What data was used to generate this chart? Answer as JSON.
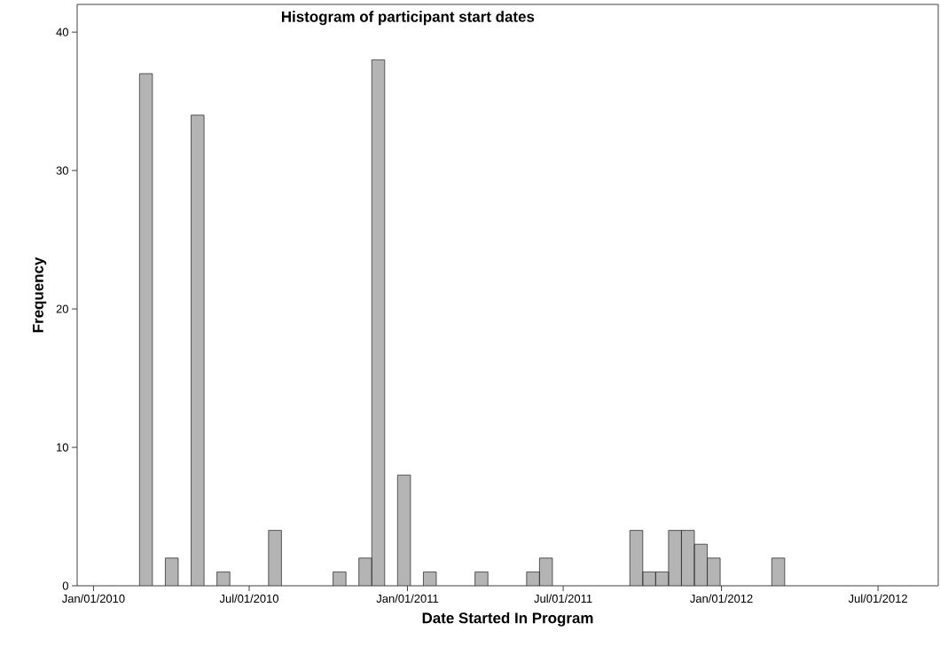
{
  "chart_data": {
    "type": "bar",
    "title": "Histogram of participant start dates",
    "xlabel": "Date Started In Program",
    "ylabel": "Frequency",
    "x": [
      "2010-03-03",
      "2010-04-02",
      "2010-05-02",
      "2010-06-01",
      "2010-07-31",
      "2010-10-14",
      "2010-11-13",
      "2010-11-28",
      "2010-12-28",
      "2011-01-27",
      "2011-03-28",
      "2011-05-27",
      "2011-06-11",
      "2011-09-24",
      "2011-10-09",
      "2011-10-24",
      "2011-11-08",
      "2011-11-23",
      "2011-12-08",
      "2011-12-23",
      "2012-03-07"
    ],
    "values": [
      37,
      2,
      34,
      1,
      4,
      1,
      2,
      38,
      8,
      1,
      1,
      1,
      2,
      4,
      1,
      1,
      4,
      4,
      3,
      2,
      2
    ],
    "color": "#b4b4b4",
    "xlim": [
      "2009-12-13",
      "2012-09-09"
    ],
    "ylim": [
      0,
      42
    ],
    "xticks": [
      {
        "value": "2010-01-01",
        "label": "Jan/01/2010"
      },
      {
        "value": "2010-07-01",
        "label": "Jul/01/2010"
      },
      {
        "value": "2011-01-01",
        "label": "Jan/01/2011"
      },
      {
        "value": "2011-07-01",
        "label": "Jul/01/2011"
      },
      {
        "value": "2012-01-01",
        "label": "Jan/01/2012"
      },
      {
        "value": "2012-07-01",
        "label": "Jul/01/2012"
      }
    ],
    "yticks": [
      0,
      10,
      20,
      30,
      40
    ],
    "grid": false
  }
}
